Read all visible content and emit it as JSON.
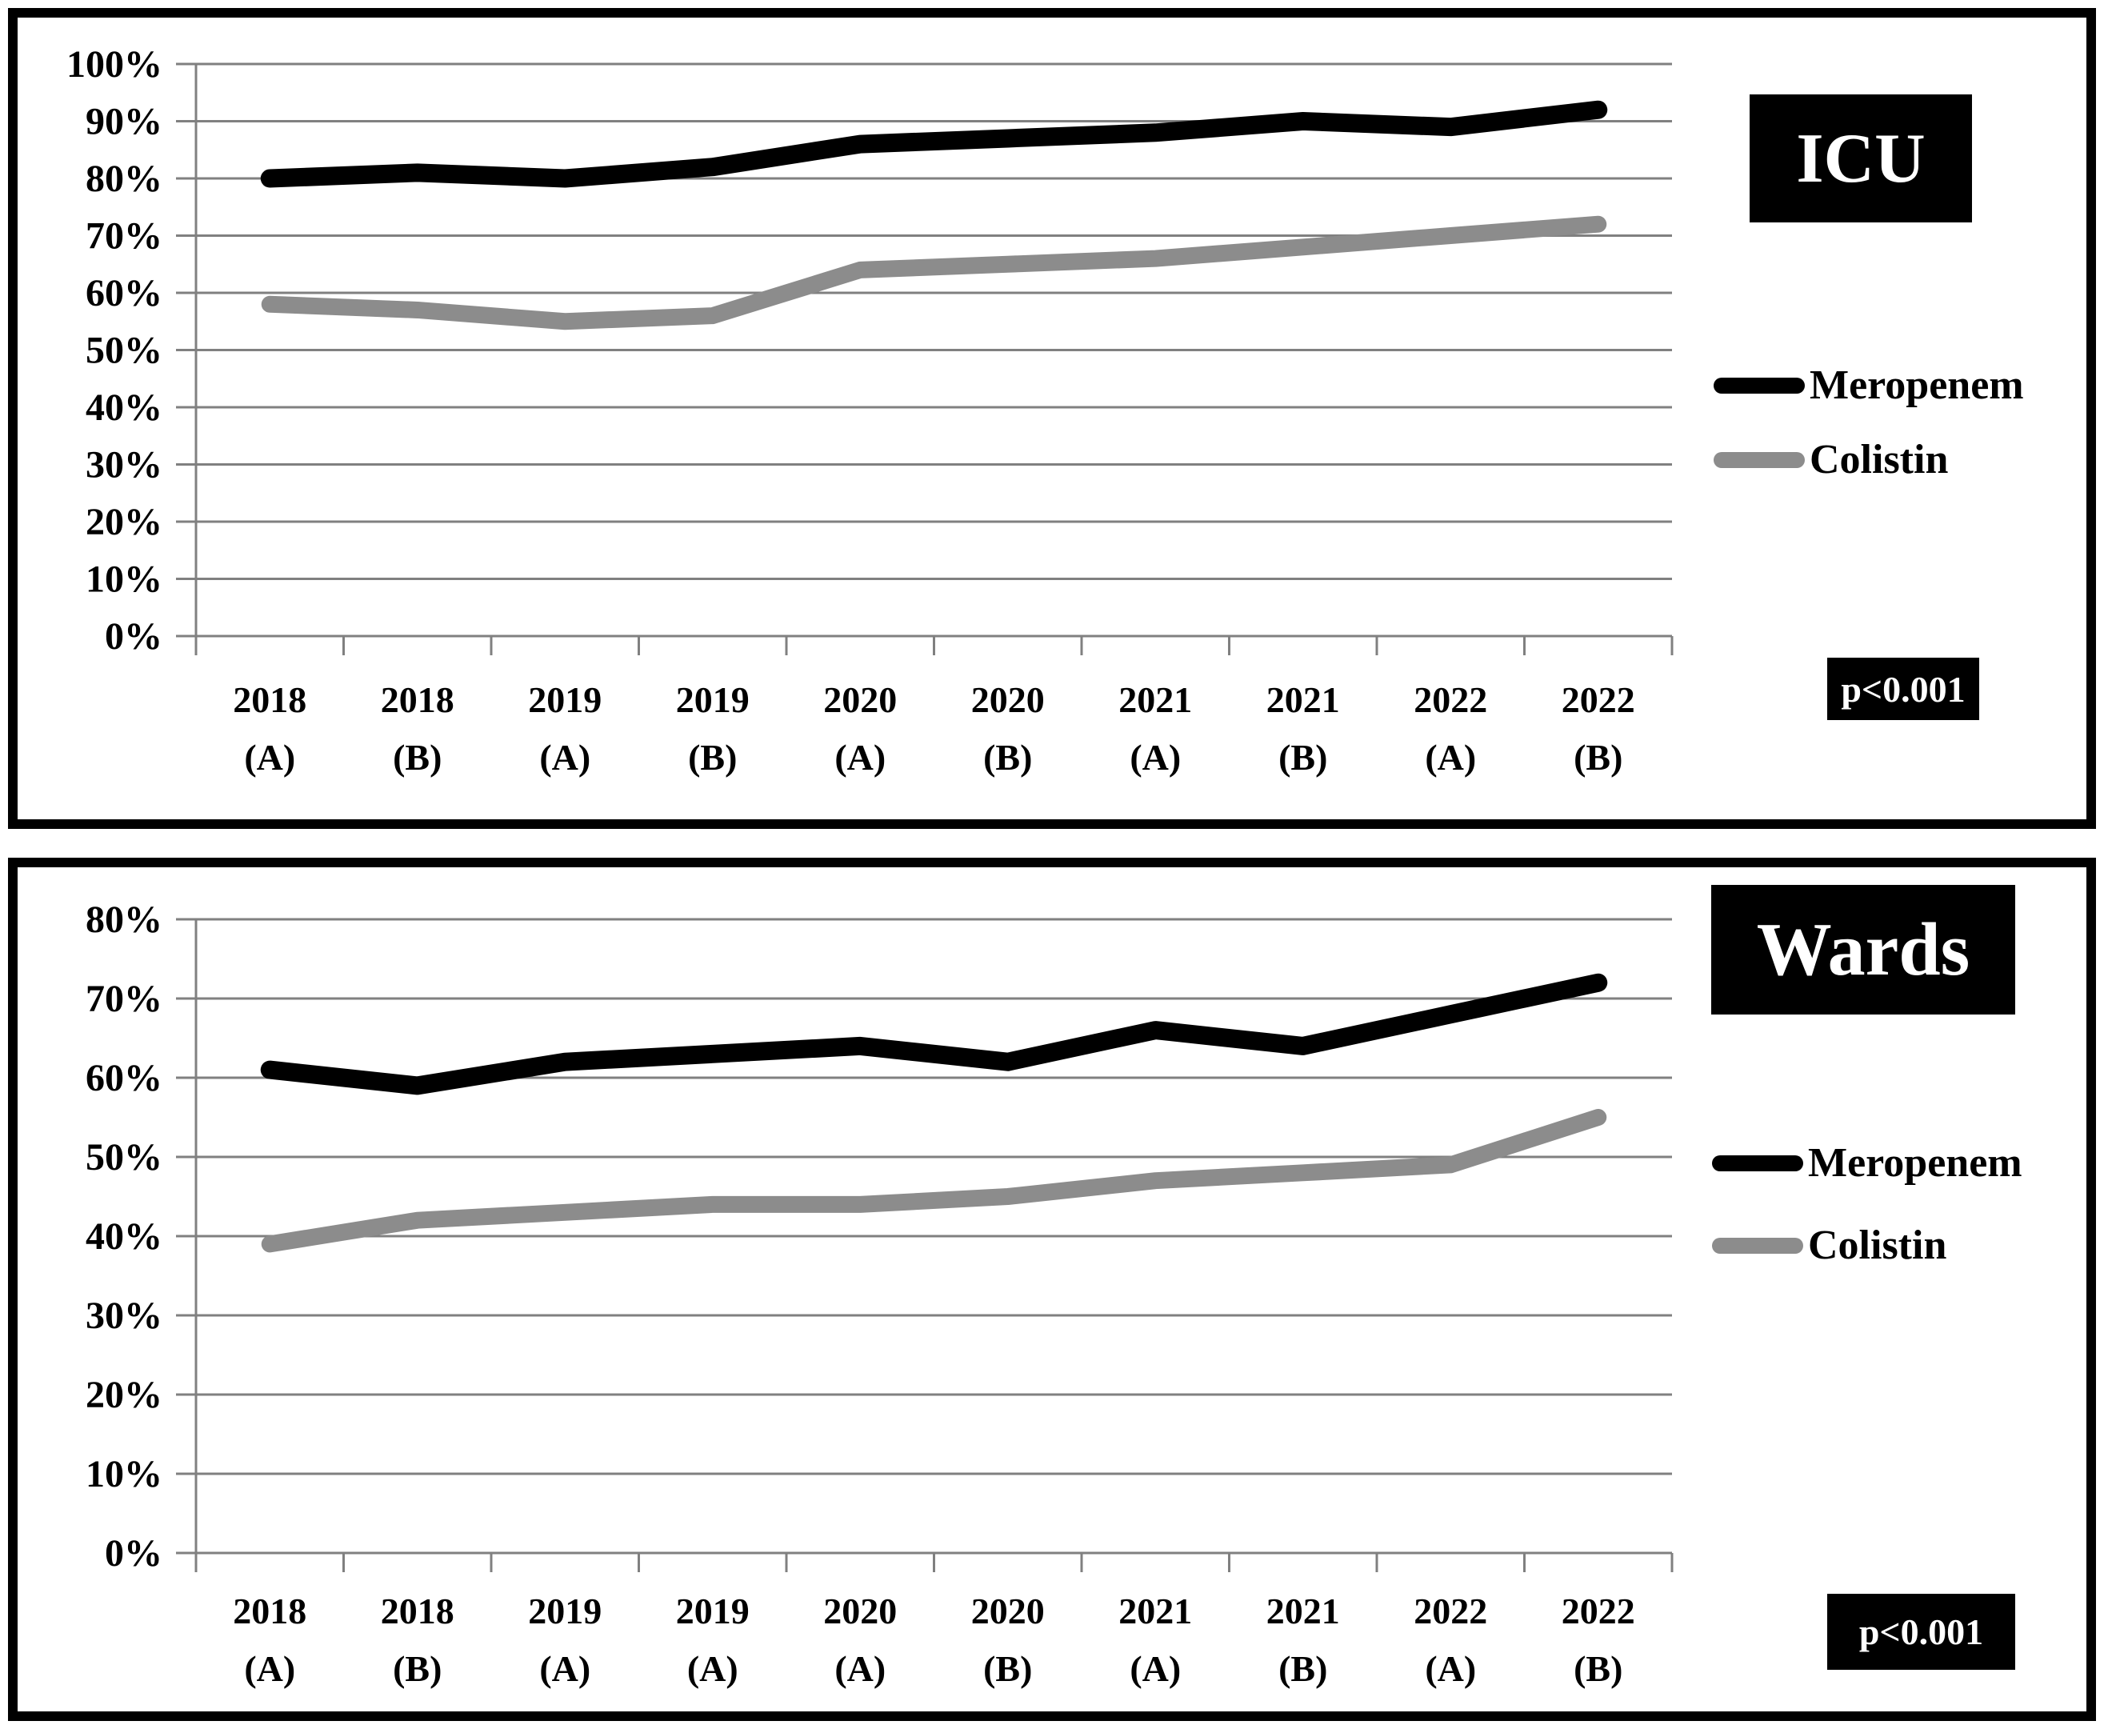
{
  "figure": {
    "background": "#ffffff",
    "border_color": "#000000",
    "gridline_color": "#808080"
  },
  "charts": [
    {
      "p_label_note": "annotation shown bottom-right of panel",
      "chart_data": {
        "type": "line",
        "title": "ICU",
        "xlabel": "",
        "ylabel": "",
        "ylim": [
          0,
          100
        ],
        "y_step": 10,
        "grid": true,
        "legend_position": "right",
        "y_ticks": [
          "0%",
          "10%",
          "20%",
          "30%",
          "40%",
          "50%",
          "60%",
          "70%",
          "80%",
          "90%",
          "100%"
        ],
        "categories": [
          [
            "2018",
            "(A)"
          ],
          [
            "2018",
            "(B)"
          ],
          [
            "2019",
            "(A)"
          ],
          [
            "2019",
            "(B)"
          ],
          [
            "2020",
            "(A)"
          ],
          [
            "2020",
            "(B)"
          ],
          [
            "2021",
            "(A)"
          ],
          [
            "2021",
            "(B)"
          ],
          [
            "2022",
            "(A)"
          ],
          [
            "2022",
            "(B)"
          ]
        ],
        "series": [
          {
            "name": "Meropenem",
            "color": "#000000",
            "values": [
              80,
              81,
              80,
              82,
              86,
              87,
              88,
              90,
              89,
              92
            ]
          },
          {
            "name": "Colistin",
            "color": "#8c8c8c",
            "values": [
              58,
              57,
              55,
              56,
              64,
              65,
              66,
              68,
              70,
              72
            ]
          }
        ],
        "annotations": [
          "p<0.001"
        ]
      }
    },
    {
      "p_label_note": "annotation shown bottom-right of panel",
      "chart_data": {
        "type": "line",
        "title": "Wards",
        "xlabel": "",
        "ylabel": "",
        "ylim": [
          0,
          80
        ],
        "y_step": 10,
        "grid": true,
        "legend_position": "right",
        "y_ticks": [
          "0%",
          "10%",
          "20%",
          "30%",
          "40%",
          "50%",
          "60%",
          "70%",
          "80%"
        ],
        "categories": [
          [
            "2018",
            "(A)"
          ],
          [
            "2018",
            "(B)"
          ],
          [
            "2019",
            "(A)"
          ],
          [
            "2019",
            "(A)"
          ],
          [
            "2020",
            "(A)"
          ],
          [
            "2020",
            "(B)"
          ],
          [
            "2021",
            "(A)"
          ],
          [
            "2021",
            "(B)"
          ],
          [
            "2022",
            "(A)"
          ],
          [
            "2022",
            "(B)"
          ]
        ],
        "series": [
          {
            "name": "Meropenem",
            "color": "#000000",
            "values": [
              61,
              59,
              62,
              63,
              64,
              62,
              66,
              64,
              68,
              72
            ]
          },
          {
            "name": "Colistin",
            "color": "#8c8c8c",
            "values": [
              39,
              42,
              43,
              44,
              44,
              45,
              47,
              48,
              49,
              55
            ]
          }
        ],
        "annotations": [
          "p<0.001"
        ]
      }
    }
  ]
}
